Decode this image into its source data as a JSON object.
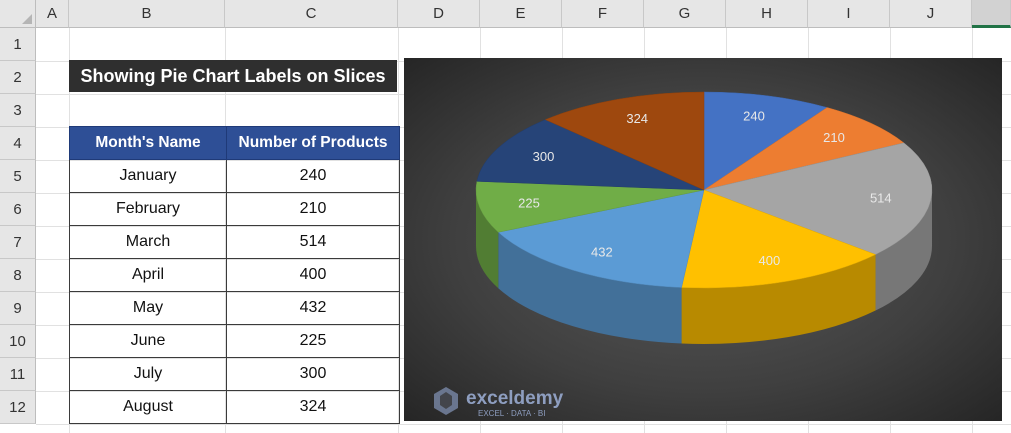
{
  "columns": [
    "A",
    "B",
    "C",
    "D",
    "E",
    "F",
    "G",
    "H",
    "I",
    "J",
    ""
  ],
  "rows": [
    "1",
    "2",
    "3",
    "4",
    "5",
    "6",
    "7",
    "8",
    "9",
    "10",
    "11",
    "12"
  ],
  "title": "Showing Pie Chart Labels on Slices",
  "table": {
    "headers": [
      "Month's Name",
      "Number of Products"
    ],
    "rows": [
      [
        "January",
        "240"
      ],
      [
        "February",
        "210"
      ],
      [
        "March",
        "514"
      ],
      [
        "April",
        "400"
      ],
      [
        "May",
        "432"
      ],
      [
        "June",
        "225"
      ],
      [
        "July",
        "300"
      ],
      [
        "August",
        "324"
      ]
    ]
  },
  "chart_data": {
    "type": "pie",
    "style": "3d",
    "categories": [
      "January",
      "February",
      "March",
      "April",
      "May",
      "June",
      "July",
      "August"
    ],
    "values": [
      240,
      210,
      514,
      400,
      432,
      225,
      300,
      324
    ],
    "colors": [
      "#4472c4",
      "#ed7d31",
      "#a5a5a5",
      "#ffc000",
      "#5b9bd5",
      "#70ad47",
      "#264478",
      "#9e480e"
    ],
    "data_labels": true,
    "background": "#3a3a3a"
  },
  "watermark": {
    "name": "exceldemy",
    "tagline": "EXCEL · DATA · BI"
  }
}
